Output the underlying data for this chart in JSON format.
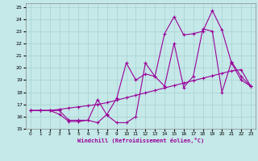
{
  "xlabel": "Windchill (Refroidissement éolien,°C)",
  "background_color": "#c5e8e8",
  "grid_color": "#a8d0d0",
  "line_color": "#990099",
  "xlim": [
    -0.5,
    23.5
  ],
  "ylim": [
    15,
    25.3
  ],
  "xticks": [
    0,
    1,
    2,
    3,
    4,
    5,
    6,
    7,
    8,
    9,
    10,
    11,
    12,
    13,
    14,
    15,
    16,
    17,
    18,
    19,
    20,
    21,
    22,
    23
  ],
  "yticks": [
    15,
    16,
    17,
    18,
    19,
    20,
    21,
    22,
    23,
    24,
    25
  ],
  "series1_x": [
    0,
    1,
    2,
    3,
    4,
    5,
    6,
    7,
    8,
    9,
    10,
    11,
    12,
    13,
    14,
    15,
    16,
    17,
    18,
    19,
    20,
    21,
    22,
    23
  ],
  "series1_y": [
    16.5,
    16.5,
    16.5,
    16.5,
    15.7,
    15.7,
    15.7,
    17.4,
    16.1,
    15.5,
    15.5,
    16.0,
    20.4,
    19.3,
    18.5,
    22.0,
    18.4,
    19.3,
    23.2,
    23.0,
    18.0,
    20.5,
    19.3,
    18.5
  ],
  "series2_x": [
    0,
    1,
    2,
    3,
    4,
    5,
    6,
    7,
    8,
    9,
    10,
    11,
    12,
    13,
    14,
    15,
    16,
    17,
    18,
    19,
    20,
    21,
    22,
    23
  ],
  "series2_y": [
    16.5,
    16.5,
    16.5,
    16.2,
    15.6,
    15.6,
    15.7,
    15.5,
    16.2,
    17.5,
    20.4,
    19.0,
    19.5,
    19.3,
    22.8,
    24.2,
    22.7,
    22.8,
    23.0,
    24.7,
    23.1,
    20.4,
    19.0,
    18.5
  ],
  "series3_x": [
    0,
    1,
    2,
    3,
    4,
    5,
    6,
    7,
    8,
    9,
    10,
    11,
    12,
    13,
    14,
    15,
    16,
    17,
    18,
    19,
    20,
    21,
    22,
    23
  ],
  "series3_y": [
    16.5,
    16.5,
    16.5,
    16.6,
    16.7,
    16.8,
    16.9,
    17.0,
    17.15,
    17.35,
    17.55,
    17.75,
    17.95,
    18.15,
    18.35,
    18.55,
    18.75,
    18.95,
    19.15,
    19.35,
    19.55,
    19.75,
    19.85,
    18.5
  ],
  "marker": "+",
  "marker_size": 3,
  "line_width": 0.8
}
